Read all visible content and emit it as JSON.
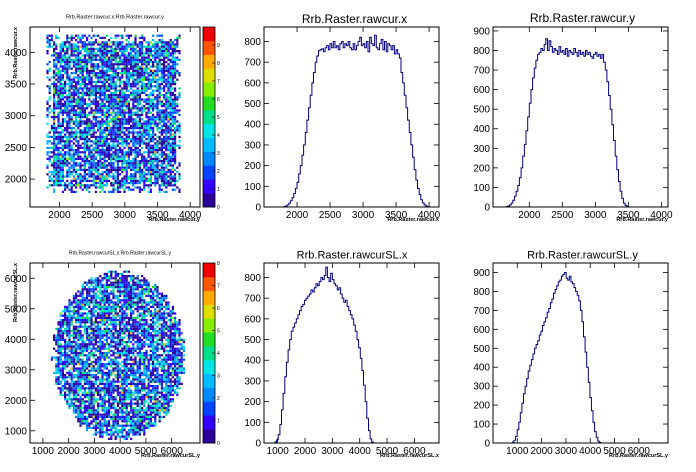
{
  "canvas": {
    "background": "#ffffff",
    "frame_color": "#000000",
    "line_color": "#000080"
  },
  "chart_data": [
    {
      "type": "heatmap",
      "title": "Rrb.Raster.rawcur.x:Rrb.Raster.rawcur.y",
      "xlabel": "Rrb.Raster.rawcur.y",
      "ylabel": "Rrb.Raster.rawcur.x",
      "xlim": [
        1550,
        4150
      ],
      "ylim": [
        1560,
        4400
      ],
      "xticks": [
        "2000",
        "2500",
        "3000",
        "3500",
        "4000"
      ],
      "xtick_values": [
        2000,
        2500,
        3000,
        3500,
        4000
      ],
      "yticks": [
        "2000",
        "2500",
        "3000",
        "3500",
        "4000"
      ],
      "ytick_values": [
        2000,
        2500,
        3000,
        3500,
        4000
      ],
      "palette_ticks": [
        "0",
        "1",
        "2",
        "3",
        "4",
        "5",
        "6",
        "7",
        "8",
        "9"
      ],
      "palette_max": 10,
      "region": {
        "shape": "square",
        "x_range": [
          1800,
          3850
        ],
        "y_range": [
          1800,
          4300
        ]
      }
    },
    {
      "type": "bar",
      "title": "Rrb.Raster.rawcur.x",
      "xlabel": "Rrb.Raster.rawcur.x",
      "xlim": [
        1500,
        4150
      ],
      "ylim": [
        0,
        870
      ],
      "xticks": [
        "2000",
        "2500",
        "3000",
        "3500",
        "4000"
      ],
      "xtick_values": [
        2000,
        2500,
        3000,
        3500,
        4000
      ],
      "yticks": [
        "0",
        "100",
        "200",
        "300",
        "400",
        "500",
        "600",
        "700",
        "800"
      ],
      "ytick_values": [
        0,
        100,
        200,
        300,
        400,
        500,
        600,
        700,
        800
      ],
      "bin_start": 1800,
      "bin_width": 25,
      "values": [
        2,
        5,
        10,
        18,
        30,
        45,
        65,
        90,
        120,
        160,
        200,
        250,
        300,
        360,
        420,
        480,
        540,
        600,
        650,
        700,
        730,
        755,
        760,
        765,
        750,
        770,
        780,
        760,
        790,
        770,
        800,
        770,
        780,
        760,
        790,
        800,
        770,
        790,
        780,
        800,
        770,
        760,
        790,
        760,
        780,
        800,
        820,
        780,
        790,
        770,
        800,
        750,
        820,
        790,
        780,
        830,
        770,
        760,
        790,
        810,
        760,
        800,
        750,
        790,
        780,
        760,
        780,
        740,
        760,
        740,
        720,
        650,
        600,
        540,
        480,
        420,
        360,
        300,
        240,
        180,
        130,
        90,
        60,
        35,
        20,
        10,
        5,
        2
      ]
    },
    {
      "type": "bar",
      "title": "Rrb.Raster.rawcur.y",
      "xlabel": "Rrb.Raster.rawcur.y",
      "xlim": [
        1450,
        4100
      ],
      "ylim": [
        0,
        920
      ],
      "xticks": [
        "2000",
        "2500",
        "3000",
        "3500",
        "4000"
      ],
      "xtick_values": [
        2000,
        2500,
        3000,
        3500,
        4000
      ],
      "yticks": [
        "0",
        "100",
        "200",
        "300",
        "400",
        "500",
        "600",
        "700",
        "800",
        "900"
      ],
      "ytick_values": [
        0,
        100,
        200,
        300,
        400,
        500,
        600,
        700,
        800,
        900
      ],
      "bin_start": 1650,
      "bin_width": 25,
      "values": [
        2,
        5,
        10,
        20,
        35,
        55,
        80,
        110,
        150,
        200,
        260,
        320,
        390,
        460,
        530,
        600,
        660,
        710,
        750,
        780,
        790,
        810,
        800,
        830,
        860,
        800,
        850,
        820,
        790,
        810,
        800,
        780,
        820,
        790,
        800,
        780,
        810,
        770,
        800,
        790,
        780,
        810,
        790,
        770,
        800,
        780,
        790,
        770,
        800,
        780,
        790,
        770,
        760,
        780,
        790,
        770,
        780,
        760,
        780,
        740,
        700,
        640,
        570,
        500,
        420,
        340,
        260,
        190,
        130,
        80,
        45,
        20,
        8,
        3
      ]
    },
    {
      "type": "heatmap",
      "title": "Rrb.Raster.rawcurSL.x:Rrb.Raster.rawcurSL.y",
      "xlabel": "Rrb.Raster.rawcurSL.y",
      "ylabel": "Rrb.Raster.rawcurSL.x",
      "xlim": [
        500,
        7100
      ],
      "ylim": [
        600,
        6500
      ],
      "xticks": [
        "1000",
        "2000",
        "3000",
        "4000",
        "5000",
        "6000"
      ],
      "xtick_values": [
        1000,
        2000,
        3000,
        4000,
        5000,
        6000
      ],
      "yticks": [
        "1000",
        "2000",
        "3000",
        "4000",
        "5000",
        "6000"
      ],
      "ytick_values": [
        1000,
        2000,
        3000,
        4000,
        5000,
        6000
      ],
      "palette_ticks": [
        "0",
        "1",
        "2",
        "3",
        "4",
        "5",
        "6",
        "7",
        "8"
      ],
      "palette_max": 8,
      "region": {
        "shape": "disk",
        "center": [
          3900,
          3500
        ],
        "radius": [
          2600,
          2800
        ]
      }
    },
    {
      "type": "bar",
      "title": "Rrb.Raster.rawcurSL.x",
      "xlabel": "Rrb.Raster.rawcurSL.x",
      "xlim": [
        500,
        6900
      ],
      "ylim": [
        0,
        870
      ],
      "xticks": [
        "1000",
        "2000",
        "3000",
        "4000",
        "5000",
        "6000"
      ],
      "xtick_values": [
        1000,
        2000,
        3000,
        4000,
        5000,
        6000
      ],
      "yticks": [
        "0",
        "100",
        "200",
        "300",
        "400",
        "500",
        "600",
        "700",
        "800"
      ],
      "ytick_values": [
        0,
        100,
        200,
        300,
        400,
        500,
        600,
        700,
        800
      ],
      "bin_start": 900,
      "bin_width": 60,
      "values": [
        5,
        15,
        40,
        90,
        160,
        240,
        320,
        390,
        450,
        500,
        540,
        560,
        580,
        600,
        620,
        640,
        660,
        670,
        690,
        700,
        710,
        720,
        740,
        730,
        750,
        770,
        760,
        780,
        800,
        790,
        810,
        850,
        800,
        780,
        820,
        790,
        770,
        760,
        740,
        750,
        720,
        700,
        680,
        690,
        660,
        640,
        620,
        600,
        570,
        540,
        500,
        460,
        410,
        350,
        280,
        200,
        120,
        60,
        20,
        5
      ]
    },
    {
      "type": "bar",
      "title": "Rrb.Raster.rawcurSL.y",
      "xlabel": "Rrb.Raster.rawcurSL.y",
      "xlim": [
        0,
        7200
      ],
      "ylim": [
        0,
        950
      ],
      "xticks": [
        "1000",
        "2000",
        "3000",
        "4000",
        "5000",
        "6000"
      ],
      "xtick_values": [
        1000,
        2000,
        3000,
        4000,
        5000,
        6000
      ],
      "yticks": [
        "0",
        "100",
        "200",
        "300",
        "400",
        "500",
        "600",
        "700",
        "800",
        "900"
      ],
      "ytick_values": [
        0,
        100,
        200,
        300,
        400,
        500,
        600,
        700,
        800,
        900
      ],
      "bin_start": 800,
      "bin_width": 65,
      "values": [
        5,
        15,
        35,
        70,
        110,
        160,
        210,
        260,
        300,
        340,
        380,
        410,
        440,
        470,
        500,
        520,
        540,
        570,
        590,
        620,
        640,
        660,
        690,
        710,
        740,
        760,
        790,
        810,
        830,
        850,
        860,
        880,
        890,
        900,
        870,
        860,
        880,
        850,
        840,
        820,
        800,
        780,
        750,
        700,
        640,
        560,
        480,
        400,
        320,
        240,
        170,
        110,
        60,
        30,
        10,
        3
      ]
    }
  ]
}
